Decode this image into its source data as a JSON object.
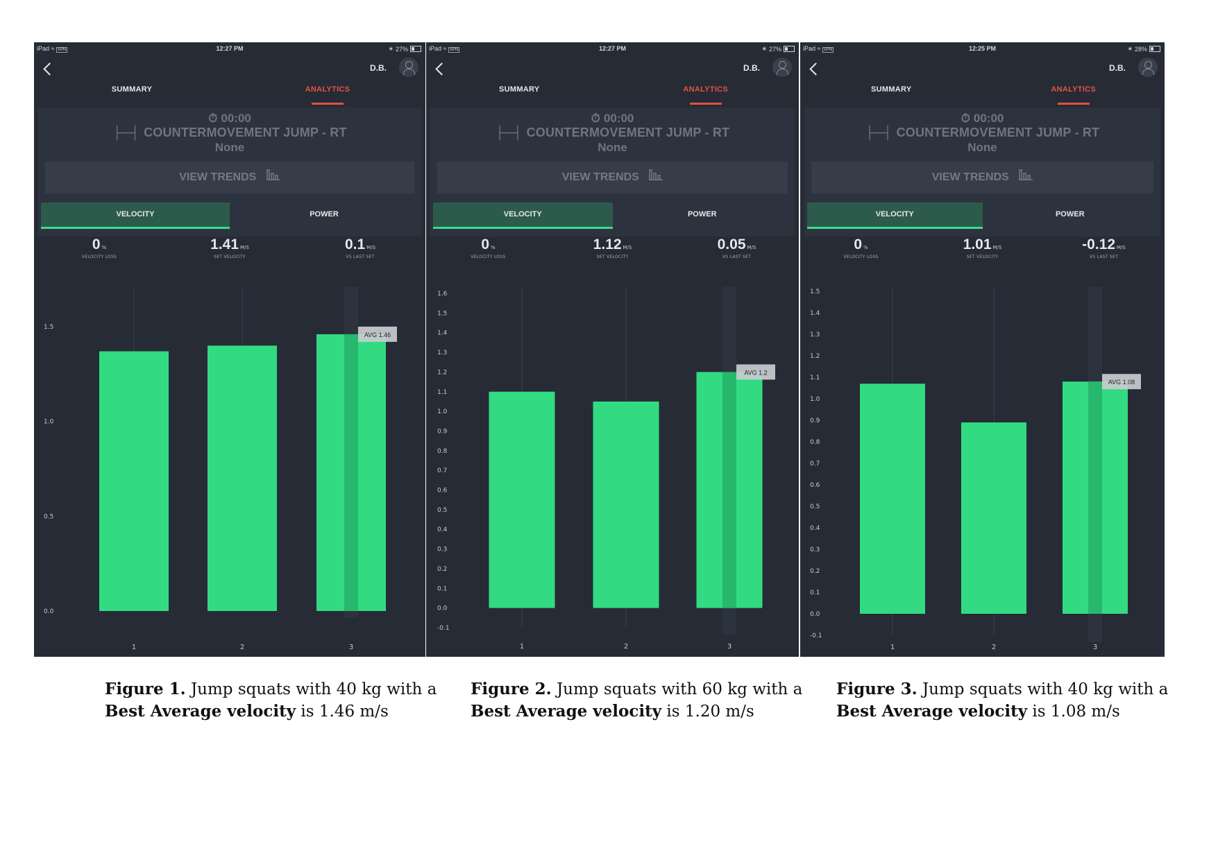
{
  "panels": [
    {
      "status": {
        "device": "iPad",
        "vpn": "VPN",
        "time": "12:27 PM",
        "battery": "27%"
      },
      "user": {
        "initials": "D.B."
      },
      "tabs": [
        "SUMMARY",
        "ANALYTICS"
      ],
      "active_tab": 1,
      "info": {
        "time": "00:00",
        "exercise": "COUNTERMOVEMENT JUMP - RT",
        "resistance": "None",
        "trends": "VIEW TRENDS"
      },
      "metric_toggle": [
        "VELOCITY",
        "POWER"
      ],
      "stats": [
        {
          "value": "0",
          "unit": "%",
          "label": "VELOCITY LOSS"
        },
        {
          "value": "1.41",
          "unit": "M/S",
          "label": "SET VELOCITY"
        },
        {
          "value": "0.1",
          "unit": "M/S",
          "label": "VS LAST SET"
        }
      ]
    },
    {
      "status": {
        "device": "iPad",
        "vpn": "VPN",
        "time": "12:27 PM",
        "battery": "27%"
      },
      "user": {
        "initials": "D.B."
      },
      "tabs": [
        "SUMMARY",
        "ANALYTICS"
      ],
      "active_tab": 1,
      "info": {
        "time": "00:00",
        "exercise": "COUNTERMOVEMENT JUMP - RT",
        "resistance": "None",
        "trends": "VIEW TRENDS"
      },
      "metric_toggle": [
        "VELOCITY",
        "POWER"
      ],
      "stats": [
        {
          "value": "0",
          "unit": "%",
          "label": "VELOCITY LOSS"
        },
        {
          "value": "1.12",
          "unit": "M/S",
          "label": "SET VELOCITY"
        },
        {
          "value": "0.05",
          "unit": "M/S",
          "label": "VS LAST SET"
        }
      ]
    },
    {
      "status": {
        "device": "iPad",
        "vpn": "VPN",
        "time": "12:25 PM",
        "battery": "28%"
      },
      "user": {
        "initials": "D.B."
      },
      "tabs": [
        "SUMMARY",
        "ANALYTICS"
      ],
      "active_tab": 1,
      "info": {
        "time": "00:00",
        "exercise": "COUNTERMOVEMENT JUMP - RT",
        "resistance": "None",
        "trends": "VIEW TRENDS"
      },
      "metric_toggle": [
        "VELOCITY",
        "POWER"
      ],
      "stats": [
        {
          "value": "0",
          "unit": "%",
          "label": "VELOCITY LOSS"
        },
        {
          "value": "1.01",
          "unit": "M/S",
          "label": "SET VELOCITY"
        },
        {
          "value": "-0.12",
          "unit": "M/S",
          "label": "VS LAST SET"
        }
      ]
    }
  ],
  "chart_data": [
    {
      "type": "bar",
      "categories": [
        "1",
        "2",
        "3"
      ],
      "values": [
        1.37,
        1.4,
        1.46
      ],
      "yticks": [
        "0.0",
        "0.5",
        "1.0",
        "1.5"
      ],
      "ylim": [
        0,
        1.5
      ],
      "avg_label": "AVG 1.46",
      "avg_value": 1.46,
      "highlight_index": 2
    },
    {
      "type": "bar",
      "categories": [
        "1",
        "2",
        "3"
      ],
      "values": [
        1.1,
        1.05,
        1.2
      ],
      "yticks": [
        "-0.1",
        "0.0",
        "0.1",
        "0.2",
        "0.3",
        "0.4",
        "0.5",
        "0.6",
        "0.7",
        "0.8",
        "0.9",
        "1.0",
        "1.1",
        "1.2",
        "1.3",
        "1.4",
        "1.5",
        "1.6"
      ],
      "ylim": [
        -0.1,
        1.6
      ],
      "avg_label": "AVG 1.2",
      "avg_value": 1.2,
      "highlight_index": 2
    },
    {
      "type": "bar",
      "categories": [
        "1",
        "2",
        "3"
      ],
      "values": [
        1.07,
        0.89,
        1.08
      ],
      "yticks": [
        "-0.1",
        "0.0",
        "0.1",
        "0.2",
        "0.3",
        "0.4",
        "0.5",
        "0.6",
        "0.7",
        "0.8",
        "0.9",
        "1.0",
        "1.1",
        "1.2",
        "1.3",
        "1.4",
        "1.5"
      ],
      "ylim": [
        -0.1,
        1.5
      ],
      "avg_label": "AVG 1.08",
      "avg_value": 1.08,
      "highlight_index": 2
    }
  ],
  "colors": {
    "bar": "#32db82",
    "highlight_strip": "#27b86d",
    "accent": "#e5533d",
    "panel_bg": "#262b35"
  },
  "captions": [
    {
      "figure": "Figure 1.",
      "text1": " Jump squats with 40 kg with a",
      "bold2": "Best Average velocity",
      "text2": " is 1.46 m/s"
    },
    {
      "figure": "Figure 2.",
      "text1": " Jump squats with 60 kg with a",
      "bold2": "Best Average velocity",
      "text2": " is 1.20 m/s"
    },
    {
      "figure": "Figure 3.",
      "text1": " Jump squats with 40 kg with a",
      "bold2": "Best Average velocity",
      "text2": " is 1.08 m/s"
    }
  ]
}
